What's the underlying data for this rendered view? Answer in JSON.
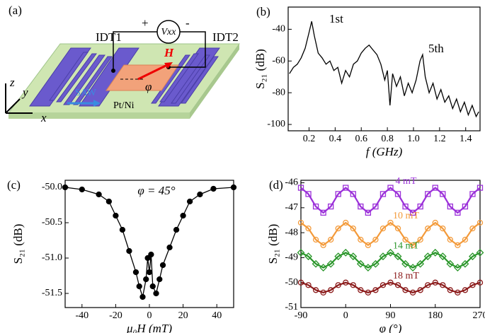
{
  "figure": {
    "panel": "(a)",
    "idt1": "IDT1",
    "idt2": "IDT2",
    "plus": "+",
    "minus": "-",
    "voltage": "Vxx",
    "field": "H",
    "angle": "φ",
    "wave": "SAW",
    "film": "Pt/Ni",
    "axis_z": "z",
    "axis_y": "y",
    "axis_x": "x"
  },
  "chart_data": [
    {
      "type": "line",
      "panel": "(b)",
      "xlabel": "f (GHz)",
      "ylabel": "S₂₁ (dB)",
      "color": "#000000",
      "annotations": [
        "1st",
        "5th"
      ],
      "x": [
        0.05,
        0.08,
        0.11,
        0.14,
        0.17,
        0.2,
        0.22,
        0.24,
        0.27,
        0.3,
        0.33,
        0.36,
        0.39,
        0.42,
        0.45,
        0.48,
        0.51,
        0.54,
        0.57,
        0.6,
        0.63,
        0.66,
        0.69,
        0.72,
        0.75,
        0.78,
        0.8,
        0.82,
        0.84,
        0.87,
        0.9,
        0.93,
        0.96,
        0.99,
        1.02,
        1.05,
        1.07,
        1.09,
        1.12,
        1.15,
        1.18,
        1.21,
        1.24,
        1.27,
        1.3,
        1.33,
        1.36,
        1.39,
        1.42,
        1.45,
        1.48,
        1.5
      ],
      "values": [
        -68,
        -64,
        -62,
        -58,
        -52,
        -42,
        -35,
        -44,
        -55,
        -58,
        -62,
        -60,
        -66,
        -64,
        -74,
        -66,
        -70,
        -62,
        -60,
        -55,
        -52,
        -50,
        -53,
        -56,
        -62,
        -72,
        -66,
        -88,
        -68,
        -76,
        -70,
        -82,
        -74,
        -80,
        -72,
        -60,
        -56,
        -70,
        -80,
        -74,
        -84,
        -78,
        -86,
        -82,
        -90,
        -84,
        -92,
        -86,
        -94,
        -88,
        -95,
        -92
      ],
      "xlim": [
        0.04,
        1.51
      ],
      "ylim": [
        -104,
        -26
      ],
      "xticks": [
        0.2,
        0.4,
        0.6,
        0.8,
        {
          "value": 1,
          "label": "1.0"
        },
        1.2,
        1.4
      ],
      "yticks": [
        -100,
        -80,
        -60,
        -40
      ]
    },
    {
      "type": "line",
      "panel": "(c)",
      "xlabel": "μ₀H (mT)",
      "ylabel": "S₂₁ (dB)",
      "annotation": "φ = 45°",
      "color": "#000000",
      "marker": "circle",
      "x": [
        -50,
        -40,
        -30,
        -24,
        -20,
        -16,
        -12,
        -8,
        -6,
        -4,
        -2,
        -1,
        0,
        1,
        2,
        4,
        6,
        8,
        12,
        16,
        20,
        24,
        30,
        38,
        50
      ],
      "values": [
        -50.0,
        -50.03,
        -50.1,
        -50.2,
        -50.4,
        -50.6,
        -50.9,
        -51.2,
        -51.4,
        -51.55,
        -51.3,
        -51.0,
        -51.2,
        -50.95,
        -51.4,
        -51.5,
        -51.3,
        -51.1,
        -50.85,
        -50.6,
        -50.4,
        -50.2,
        -50.1,
        -50.02,
        -50.0
      ],
      "xlim": [
        -50,
        50
      ],
      "ylim": [
        -51.7,
        -49.9
      ],
      "xticks": [
        -40,
        -20,
        0,
        20,
        40
      ],
      "yticks": [
        {
          "value": -50,
          "label": "-50.0"
        },
        -50.5,
        {
          "value": -51,
          "label": "-51.0"
        },
        -51.5
      ]
    },
    {
      "type": "line",
      "panel": "(d)",
      "xlabel": "φ (°)",
      "ylabel": "S₂₁ (dB)",
      "x": [
        -90,
        -75,
        -60,
        -45,
        -30,
        -15,
        0,
        15,
        30,
        45,
        60,
        75,
        90,
        105,
        120,
        135,
        150,
        165,
        180,
        195,
        210,
        225,
        240,
        255,
        270
      ],
      "series": [
        {
          "name": "4 mT",
          "color": "#9b30d9",
          "marker": "square",
          "values": [
            -46.2,
            -46.45,
            -46.95,
            -47.2,
            -46.95,
            -46.45,
            -46.2,
            -46.45,
            -46.95,
            -47.2,
            -46.95,
            -46.45,
            -46.2,
            -46.45,
            -46.95,
            -47.2,
            -46.95,
            -46.45,
            -46.2,
            -46.45,
            -46.95,
            -47.2,
            -46.95,
            -46.45,
            -46.2
          ]
        },
        {
          "name": "10 mT",
          "color": "#f39a3a",
          "marker": "circle",
          "values": [
            -47.6,
            -47.83,
            -48.28,
            -48.5,
            -48.28,
            -47.83,
            -47.6,
            -47.83,
            -48.28,
            -48.5,
            -48.28,
            -47.83,
            -47.6,
            -47.83,
            -48.28,
            -48.5,
            -48.28,
            -47.83,
            -47.6,
            -47.83,
            -48.28,
            -48.5,
            -48.28,
            -47.83,
            -47.6
          ]
        },
        {
          "name": "14 mT",
          "color": "#2a962a",
          "marker": "diamond",
          "values": [
            -48.8,
            -48.95,
            -49.25,
            -49.4,
            -49.25,
            -48.95,
            -48.8,
            -48.95,
            -49.25,
            -49.4,
            -49.25,
            -48.95,
            -48.8,
            -48.95,
            -49.25,
            -49.4,
            -49.25,
            -48.95,
            -48.8,
            -48.95,
            -49.25,
            -49.4,
            -49.25,
            -48.95,
            -48.8
          ]
        },
        {
          "name": "18 mT",
          "color": "#8b1a1a",
          "marker": "circle",
          "values": [
            -50.0,
            -50.1,
            -50.3,
            -50.4,
            -50.3,
            -50.1,
            -50.0,
            -50.1,
            -50.3,
            -50.4,
            -50.3,
            -50.1,
            -50.0,
            -50.1,
            -50.3,
            -50.4,
            -50.3,
            -50.1,
            -50.0,
            -50.1,
            -50.3,
            -50.4,
            -50.3,
            -50.1,
            -50.0
          ]
        }
      ],
      "xlim": [
        -90,
        270
      ],
      "ylim": [
        -51,
        -45.9
      ],
      "xticks": [
        -90,
        0,
        90,
        180,
        270
      ],
      "yticks": [
        -51,
        -50,
        -49,
        -48,
        -47,
        -46
      ]
    }
  ]
}
